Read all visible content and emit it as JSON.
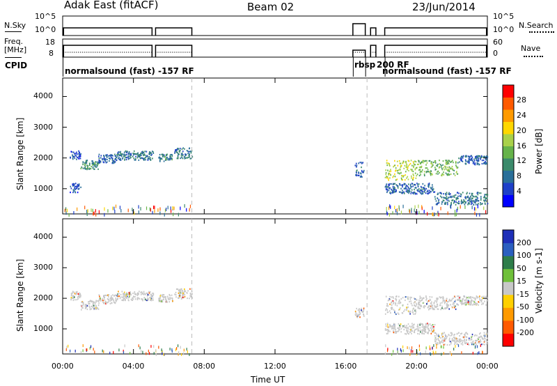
{
  "header": {
    "station": "Adak East (fitACF)",
    "beam": "Beam 02",
    "date": "23/Jun/2014"
  },
  "left_panel_labels": {
    "nsky": "N.Sky",
    "freq_line1": "Freq.",
    "freq_line2": "[MHz]",
    "cpid": "CPID"
  },
  "right_panel_labels": {
    "nsearch": "N.Search",
    "nave": "Nave"
  },
  "noise_axis": {
    "left_top": "10^5",
    "left_bottom": "10^0",
    "right_top": "10^5",
    "right_bottom": "10^0"
  },
  "freq_axis": {
    "left_top": "18",
    "left_bottom": "8",
    "right_top": "60",
    "right_bottom": "0"
  },
  "cpid_segments": [
    {
      "label": "normalsound (fast) -157 RF"
    },
    {
      "label": "rbsp"
    },
    {
      "label": "200 RF"
    },
    {
      "label": "normalsound (fast) -157 RF"
    }
  ],
  "chart_data": [
    {
      "type": "heatmap",
      "name": "power",
      "xlabel": "",
      "ylabel": "Slant Range [km]",
      "x_unit": "hours UT",
      "xlim": [
        0,
        24
      ],
      "ylim": [
        180,
        4600
      ],
      "yticks": [
        "1000",
        "2000",
        "3000",
        "4000"
      ],
      "colorbar": {
        "label": "Power [dB]",
        "ticks": [
          "4",
          "8",
          "12",
          "16",
          "20",
          "24",
          "28"
        ],
        "range": [
          0,
          32
        ],
        "colors": [
          "#0000ff",
          "#1e40c8",
          "#2a6f99",
          "#3b8a6b",
          "#66b34a",
          "#a9d14a",
          "#ffd700",
          "#ff9a00",
          "#ff5a00",
          "#ff0000"
        ]
      },
      "bands": [
        {
          "t": [
            0.4,
            1.0
          ],
          "r": [
            1950,
            2250
          ],
          "level": 4
        },
        {
          "t": [
            1.0,
            2.0
          ],
          "r": [
            1650,
            1950
          ],
          "level": 10
        },
        {
          "t": [
            2.0,
            3.0
          ],
          "r": [
            1850,
            2150
          ],
          "level": 6
        },
        {
          "t": [
            3.0,
            5.1
          ],
          "r": [
            1950,
            2250
          ],
          "level": 8
        },
        {
          "t": [
            5.4,
            6.2
          ],
          "r": [
            1900,
            2150
          ],
          "level": 9
        },
        {
          "t": [
            6.3,
            7.3
          ],
          "r": [
            2000,
            2350
          ],
          "level": 8
        },
        {
          "t": [
            0.4,
            1.0
          ],
          "r": [
            900,
            1200
          ],
          "level": 4
        },
        {
          "t": [
            16.5,
            17.0
          ],
          "r": [
            1400,
            1900
          ],
          "level": 6
        },
        {
          "t": [
            18.2,
            20.0
          ],
          "r": [
            1300,
            1950
          ],
          "level": 18
        },
        {
          "t": [
            20.0,
            22.3
          ],
          "r": [
            1450,
            1950
          ],
          "level": 14
        },
        {
          "t": [
            22.3,
            24.0
          ],
          "r": [
            1800,
            2100
          ],
          "level": 6
        },
        {
          "t": [
            18.2,
            21.0
          ],
          "r": [
            850,
            1200
          ],
          "level": 6
        },
        {
          "t": [
            21.0,
            24.0
          ],
          "r": [
            500,
            900
          ],
          "level": 8
        }
      ]
    },
    {
      "type": "heatmap",
      "name": "velocity",
      "xlabel": "Time UT",
      "ylabel": "Slant Range [km]",
      "x_unit": "hours UT",
      "xlim": [
        0,
        24
      ],
      "ylim": [
        180,
        4600
      ],
      "xticks": [
        "00:00",
        "04:00",
        "08:00",
        "12:00",
        "16:00",
        "20:00",
        "00:00"
      ],
      "yticks": [
        "1000",
        "2000",
        "3000",
        "4000"
      ],
      "colorbar": {
        "label": "Velocity [m s-1]",
        "ticks": [
          "200",
          "100",
          "50",
          "15",
          "-15",
          "-50",
          "-100",
          "-200"
        ],
        "range": [
          -250,
          250
        ],
        "colors": [
          "#1e2fb8",
          "#2b5fc0",
          "#2e7d4a",
          "#6fc03a",
          "#c8c8c8",
          "#ffd000",
          "#ff9a00",
          "#ff5a00",
          "#ff0000"
        ]
      },
      "bands": [
        {
          "t": [
            0.4,
            1.0
          ],
          "r": [
            1950,
            2250
          ],
          "velocity": 0
        },
        {
          "t": [
            1.0,
            2.0
          ],
          "r": [
            1650,
            1950
          ],
          "velocity": 0
        },
        {
          "t": [
            2.0,
            3.0
          ],
          "r": [
            1850,
            2150
          ],
          "velocity": 0
        },
        {
          "t": [
            3.0,
            5.1
          ],
          "r": [
            1950,
            2250
          ],
          "velocity": 0
        },
        {
          "t": [
            5.4,
            6.2
          ],
          "r": [
            1900,
            2150
          ],
          "velocity": 0
        },
        {
          "t": [
            6.3,
            7.3
          ],
          "r": [
            2000,
            2350
          ],
          "velocity": 0
        },
        {
          "t": [
            16.5,
            17.0
          ],
          "r": [
            1400,
            1700
          ],
          "velocity": 0
        },
        {
          "t": [
            18.2,
            20.0
          ],
          "r": [
            1500,
            2100
          ],
          "velocity": 0
        },
        {
          "t": [
            20.0,
            22.3
          ],
          "r": [
            1650,
            2100
          ],
          "velocity": 0
        },
        {
          "t": [
            22.3,
            24.0
          ],
          "r": [
            1800,
            2100
          ],
          "velocity": 0
        },
        {
          "t": [
            18.2,
            21.0
          ],
          "r": [
            850,
            1200
          ],
          "velocity": 0
        },
        {
          "t": [
            21.0,
            24.0
          ],
          "r": [
            500,
            900
          ],
          "velocity": 0
        }
      ]
    }
  ],
  "segment_gaps_ut": [
    7.3,
    16.4,
    17.1,
    18.2
  ]
}
